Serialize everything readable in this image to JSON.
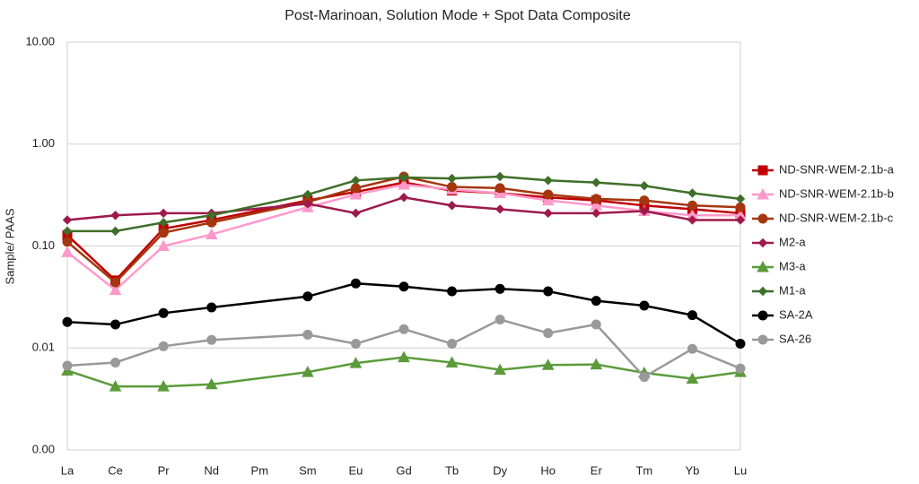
{
  "chart_data": {
    "type": "line",
    "title": "Post-Marinoan, Solution Mode + Spot Data Composite",
    "y_label": "Sample/ PAAS",
    "log_scale": true,
    "grid": true,
    "connect_gaps": true,
    "legend": "right",
    "categories": [
      "La",
      "Ce",
      "Pr",
      "Nd",
      "Pm",
      "Sm",
      "Eu",
      "Gd",
      "Tb",
      "Dy",
      "Ho",
      "Er",
      "Tm",
      "Yb",
      "Lu"
    ],
    "ylim": [
      0.001,
      10
    ],
    "yticks": [
      {
        "value": 0.001,
        "label": "0.00"
      },
      {
        "value": 0.01,
        "label": "0.01"
      },
      {
        "value": 0.1,
        "label": "0.10"
      },
      {
        "value": 1,
        "label": "1.00"
      },
      {
        "value": 10,
        "label": "10.00"
      }
    ],
    "series": [
      {
        "name": "ND-SNR-WEM-2.1b-a",
        "color": "#c00000",
        "marker": "square",
        "values": [
          0.128,
          0.046,
          0.148,
          0.18,
          null,
          0.28,
          0.34,
          0.42,
          0.35,
          0.33,
          0.3,
          0.28,
          0.25,
          0.23,
          0.21
        ]
      },
      {
        "name": "ND-SNR-WEM-2.1b-b",
        "color": "#ff99cc",
        "marker": "triangle",
        "values": [
          0.087,
          0.037,
          0.1,
          0.13,
          null,
          0.24,
          0.32,
          0.4,
          0.36,
          0.33,
          0.28,
          0.25,
          0.22,
          0.2,
          0.2
        ]
      },
      {
        "name": "ND-SNR-WEM-2.1b-c",
        "color": "#a5360f",
        "marker": "circle",
        "values": [
          0.11,
          0.044,
          0.135,
          0.17,
          null,
          0.27,
          0.37,
          0.48,
          0.38,
          0.37,
          0.32,
          0.29,
          0.28,
          0.25,
          0.24
        ]
      },
      {
        "name": "M2-a",
        "color": "#9e1a4a",
        "marker": "diamond",
        "values": [
          0.18,
          0.2,
          0.21,
          0.21,
          null,
          0.26,
          0.21,
          0.3,
          0.25,
          0.23,
          0.21,
          0.21,
          0.22,
          0.18,
          0.18
        ]
      },
      {
        "name": "M3-a",
        "color": "#5b9b3a",
        "marker": "triangle",
        "values": [
          0.006,
          0.0042,
          0.0042,
          0.0044,
          null,
          0.0058,
          0.0071,
          0.0081,
          0.0072,
          0.0061,
          0.0068,
          0.0069,
          0.0057,
          0.005,
          0.0058
        ]
      },
      {
        "name": "M1-a",
        "color": "#3f6f2a",
        "marker": "diamond",
        "values": [
          0.14,
          0.14,
          0.17,
          0.2,
          null,
          0.32,
          0.44,
          0.47,
          0.46,
          0.48,
          0.44,
          0.42,
          0.39,
          0.33,
          0.29
        ]
      },
      {
        "name": "SA-2A",
        "color": "#000000",
        "marker": "circle",
        "values": [
          0.018,
          0.017,
          0.022,
          0.025,
          null,
          0.032,
          0.043,
          0.04,
          0.036,
          0.038,
          0.036,
          0.029,
          0.026,
          0.021,
          0.011
        ]
      },
      {
        "name": "SA-26",
        "color": "#999999",
        "marker": "circle",
        "values": [
          0.0067,
          0.0072,
          0.0104,
          0.012,
          null,
          0.0135,
          0.011,
          0.0153,
          0.011,
          0.019,
          0.014,
          0.017,
          0.0052,
          0.0098,
          0.0063
        ]
      }
    ]
  }
}
